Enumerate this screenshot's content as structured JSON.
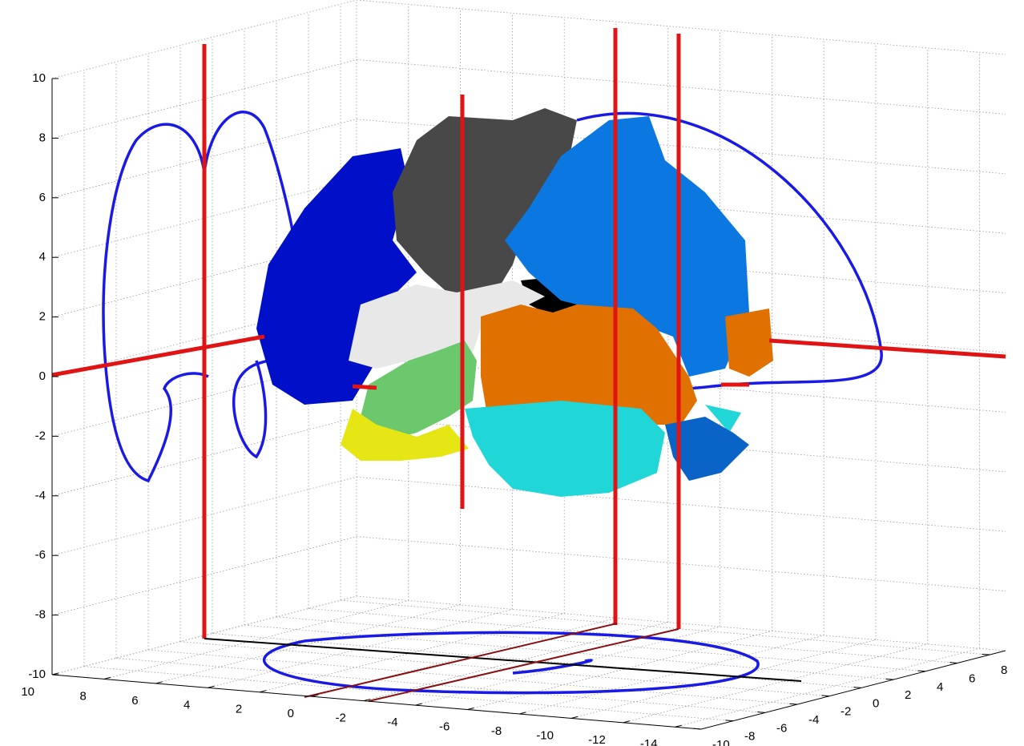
{
  "chart_data": {
    "type": "surface3d",
    "xlim": [
      -15,
      10
    ],
    "ylim": [
      -10,
      9
    ],
    "zlim": [
      -10,
      10
    ],
    "xticks": [
      -14,
      -12,
      -10,
      -8,
      -6,
      -4,
      -2,
      0,
      2,
      4,
      6,
      8,
      10
    ],
    "yticks": [
      -10,
      -8,
      -6,
      -4,
      -2,
      0,
      2,
      4,
      6,
      8
    ],
    "zticks": [
      -10,
      -8,
      -6,
      -4,
      -2,
      0,
      2,
      4,
      6,
      8,
      10
    ],
    "grid": true
  }
}
